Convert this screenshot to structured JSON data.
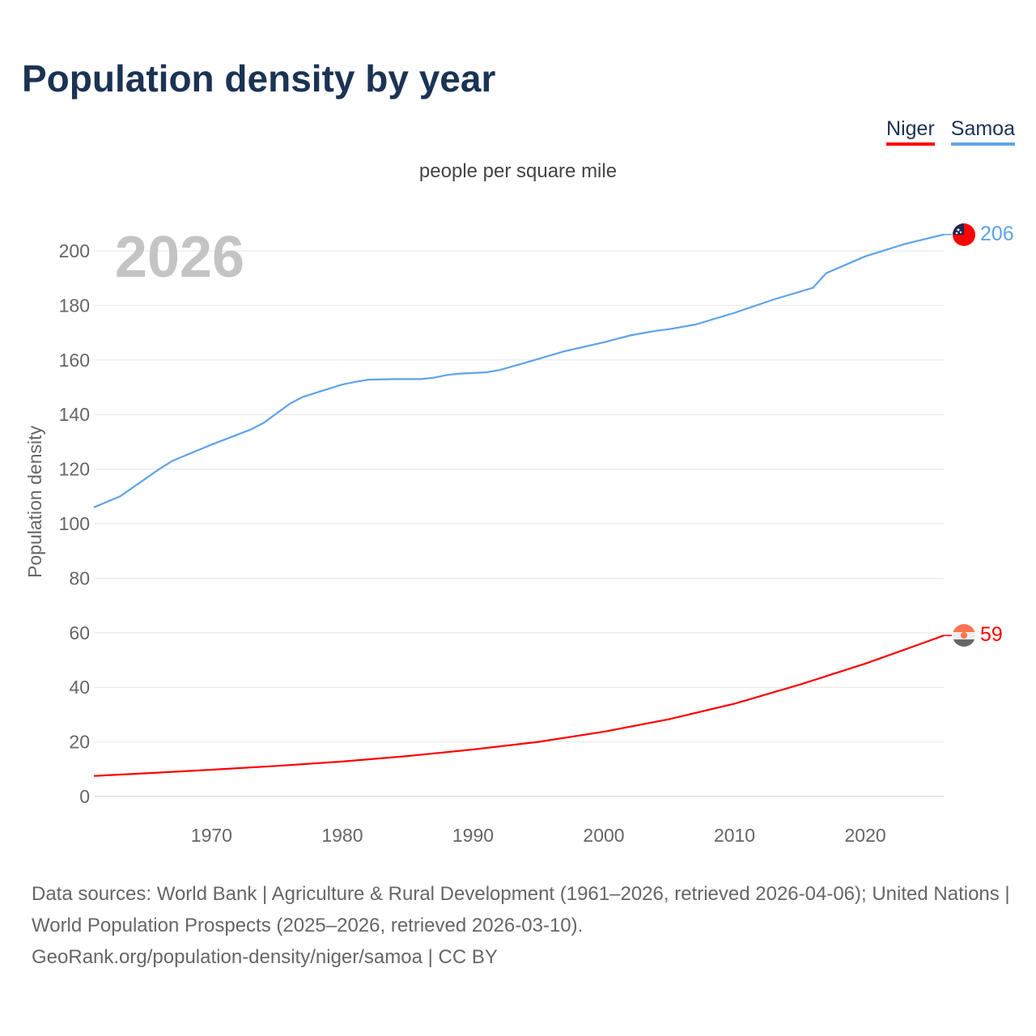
{
  "title": "Population density by year",
  "legend": [
    {
      "label": "Niger",
      "color": "#ff0000"
    },
    {
      "label": "Samoa",
      "color": "#5fa3e8"
    }
  ],
  "subtitle": "people per square mile",
  "year_label": "2026",
  "source_lines": [
    "Data sources: World Bank | Agriculture & Rural Development (1961–2026, retrieved 2026-04-06); United Nations | World Population Prospects (2025–2026, retrieved 2026-03-10).",
    "GeoRank.org/population-density/niger/samoa | CC BY"
  ],
  "chart_data": {
    "type": "line",
    "title": "Population density by year",
    "subtitle": "people per square mile",
    "xlabel": "",
    "ylabel": "Population density",
    "xlim": [
      1961,
      2026
    ],
    "ylim": [
      0,
      210
    ],
    "xticks": [
      1970,
      1980,
      1990,
      2000,
      2010,
      2020
    ],
    "yticks": [
      0,
      20,
      40,
      60,
      80,
      100,
      120,
      140,
      160,
      180,
      200
    ],
    "grid": true,
    "legend_position": "top-right",
    "series": [
      {
        "name": "Samoa",
        "color": "#5fa3e8",
        "end_label": "206",
        "x": [
          1961,
          1963,
          1966,
          1967,
          1970,
          1973,
          1974,
          1976,
          1977,
          1978,
          1980,
          1981,
          1982,
          1984,
          1986,
          1987,
          1988,
          1989,
          1991,
          1992,
          1994,
          1997,
          2000,
          2002,
          2004,
          2005,
          2007,
          2010,
          2013,
          2016,
          2017,
          2020,
          2021,
          2023,
          2026
        ],
        "y": [
          106,
          110,
          120,
          123,
          129,
          134.5,
          137,
          144,
          146.5,
          148,
          151,
          152,
          152.8,
          153,
          153,
          153.5,
          154.5,
          155,
          155.5,
          156.3,
          159,
          163.2,
          166.5,
          169,
          170.7,
          171.3,
          173,
          177.3,
          182.2,
          186.5,
          191.8,
          198,
          199.5,
          202.5,
          206
        ]
      },
      {
        "name": "Niger",
        "color": "#ff0000",
        "end_label": "59",
        "x": [
          1961,
          1965,
          1970,
          1975,
          1980,
          1985,
          1990,
          1995,
          2000,
          2005,
          2010,
          2015,
          2020,
          2023,
          2026
        ],
        "y": [
          7.5,
          8.5,
          9.8,
          11.2,
          12.8,
          14.8,
          17.2,
          20,
          23.7,
          28.3,
          34,
          41,
          48.7,
          53.8,
          59
        ]
      }
    ]
  }
}
